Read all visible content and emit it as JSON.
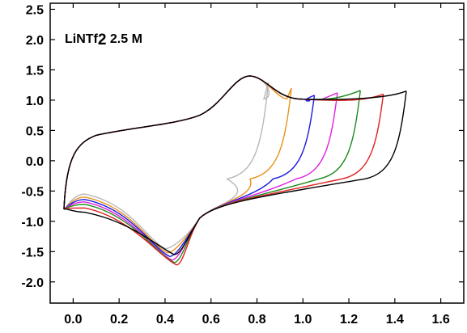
{
  "chart_data": {
    "type": "line",
    "title": "",
    "xlabel": "",
    "ylabel": "",
    "xlim": [
      -0.1,
      1.7
    ],
    "ylim": [
      -2.35,
      2.6
    ],
    "xticks": [
      0.0,
      0.2,
      0.4,
      0.6,
      0.8,
      1.0,
      1.2,
      1.4,
      1.6
    ],
    "yticks": [
      -2.0,
      -1.5,
      -1.0,
      -0.5,
      0.0,
      0.5,
      1.0,
      1.5,
      2.0,
      2.5
    ],
    "xtick_labels": [
      "0.0",
      "0.2",
      "0.4",
      "0.6",
      "0.8",
      "1.0",
      "1.2",
      "1.4",
      "1.6"
    ],
    "ytick_labels": [
      "-2.0",
      "-1.5",
      "-1.0",
      "-0.5",
      "0.0",
      "0.5",
      "1.0",
      "1.5",
      "2.0",
      "2.5"
    ],
    "grid": false,
    "legend": "none",
    "annotation": {
      "main": "LiNTf",
      "sub": "2",
      "rest": " 2.5 M"
    },
    "series": [
      {
        "color": "#b8b8b8",
        "vertex": 0.85,
        "top_end": 1.3,
        "bottom_start": -0.55,
        "reduction_peak": [
          0.4,
          -1.45
        ]
      },
      {
        "color": "#e8921e",
        "vertex": 0.95,
        "top_end": 1.2,
        "bottom_start": -0.6,
        "reduction_peak": [
          0.41,
          -1.52
        ]
      },
      {
        "color": "#1a1adf",
        "vertex": 1.05,
        "top_end": 1.08,
        "bottom_start": -0.64,
        "reduction_peak": [
          0.42,
          -1.58
        ]
      },
      {
        "color": "#e020e0",
        "vertex": 1.15,
        "top_end": 1.12,
        "bottom_start": -0.68,
        "reduction_peak": [
          0.43,
          -1.64
        ]
      },
      {
        "color": "#1f8a1f",
        "vertex": 1.25,
        "top_end": 1.16,
        "bottom_start": -0.72,
        "reduction_peak": [
          0.44,
          -1.68
        ]
      },
      {
        "color": "#e02020",
        "vertex": 1.35,
        "top_end": 1.1,
        "bottom_start": -0.78,
        "reduction_peak": [
          0.45,
          -1.72
        ]
      },
      {
        "color": "#000000",
        "vertex": 1.45,
        "top_end": 1.15,
        "bottom_start": -0.85,
        "reduction_peak": [
          0.44,
          -1.55
        ]
      }
    ]
  }
}
